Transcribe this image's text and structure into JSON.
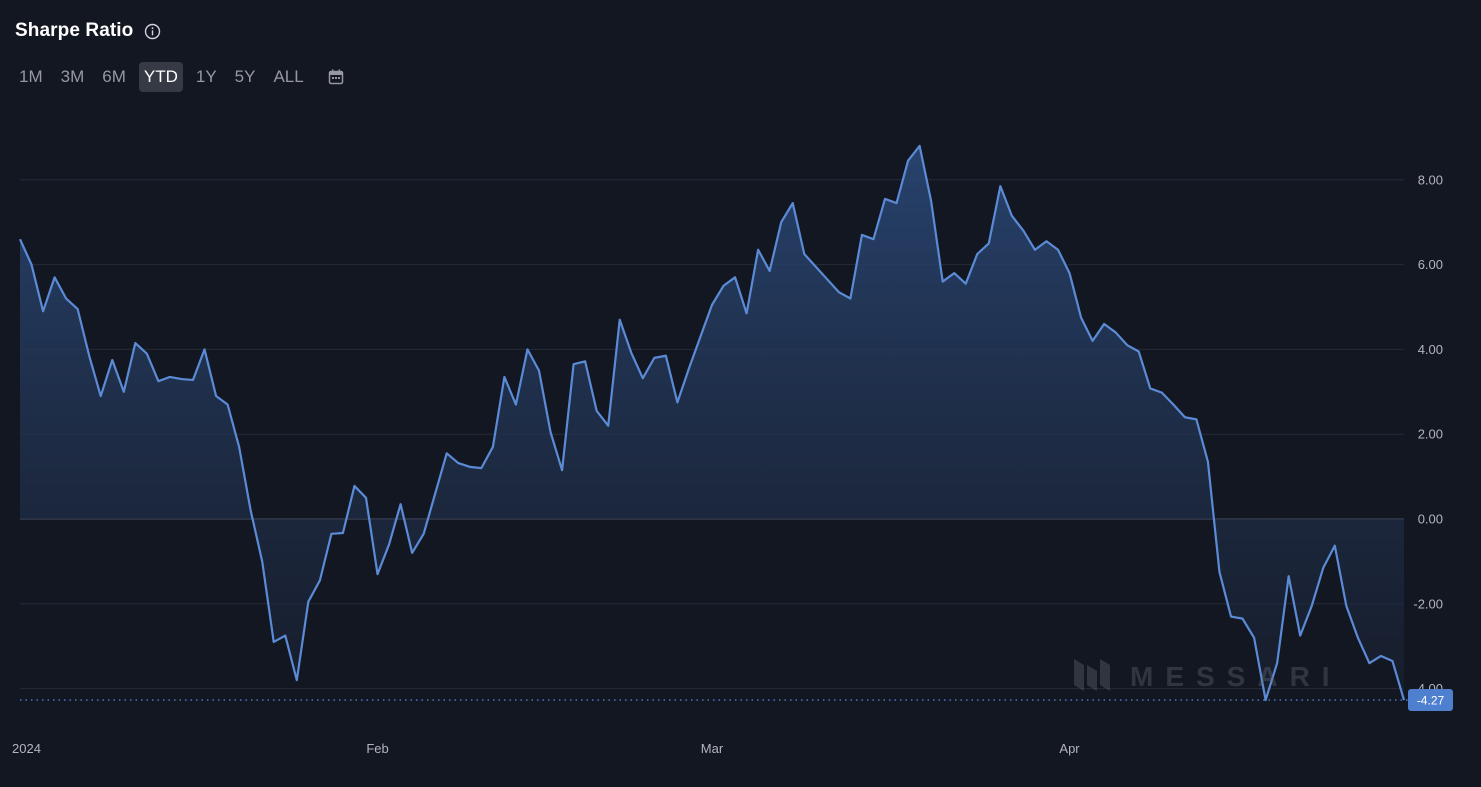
{
  "header": {
    "title": "Sharpe Ratio",
    "info_icon": "info-icon"
  },
  "range_selector": {
    "options": [
      "1M",
      "3M",
      "6M",
      "YTD",
      "1Y",
      "5Y",
      "ALL"
    ],
    "active": "YTD",
    "calendar_icon": "calendar-icon"
  },
  "watermark": {
    "text": "MESSARI",
    "logo_icon": "messari-logo-icon"
  },
  "colors": {
    "background": "#131722",
    "line": "#5b8bd6",
    "grid": "#262b38",
    "badge": "#4f7fcf"
  },
  "chart_data": {
    "type": "area",
    "title": "Sharpe Ratio",
    "xlabel": "",
    "ylabel": "",
    "ylim": [
      -4.27,
      8.8
    ],
    "y_ticks": [
      8,
      6,
      4,
      2,
      0,
      -2,
      -4
    ],
    "y_tick_labels": [
      "8.00",
      "6.00",
      "4.00",
      "2.00",
      "0.00",
      "-2.00",
      "-4.00"
    ],
    "x_tick_labels": [
      "2024",
      "Feb",
      "Mar",
      "Apr"
    ],
    "x_tick_indices": [
      0,
      31,
      60,
      91
    ],
    "last_value_label": "-4.27",
    "grid": true,
    "series": [
      {
        "values": [
          6.6,
          6.0,
          4.9,
          5.7,
          5.2,
          4.95,
          3.85,
          2.9,
          3.75,
          3.0,
          4.15,
          3.9,
          3.25,
          3.35,
          3.3,
          3.28,
          4.0,
          2.9,
          2.7,
          1.7,
          0.2,
          -1.0,
          -2.9,
          -2.75,
          -3.8,
          -1.95,
          -1.45,
          -0.35,
          -0.33,
          0.78,
          0.5,
          -1.3,
          -0.6,
          0.35,
          -0.8,
          -0.35,
          0.6,
          1.55,
          1.32,
          1.23,
          1.2,
          1.7,
          3.35,
          2.7,
          4.0,
          3.5,
          2.05,
          1.15,
          3.65,
          3.72,
          2.55,
          2.2,
          4.7,
          3.92,
          3.32,
          3.8,
          3.85,
          2.75,
          3.55,
          4.3,
          5.05,
          5.5,
          5.7,
          4.85,
          6.35,
          5.85,
          7.0,
          7.45,
          6.25,
          5.95,
          5.65,
          5.35,
          5.2,
          6.7,
          6.6,
          7.55,
          7.45,
          8.45,
          8.8,
          7.5,
          5.6,
          5.8,
          5.55,
          6.25,
          6.5,
          7.85,
          7.15,
          6.8,
          6.35,
          6.55,
          6.35,
          5.8,
          4.75,
          4.2,
          4.6,
          4.4,
          4.1,
          3.95,
          3.08,
          2.98,
          2.7,
          2.4,
          2.35,
          1.35,
          -1.25,
          -2.3,
          -2.35,
          -2.8,
          -4.27,
          -3.4,
          -1.35,
          -2.75,
          -2.05,
          -1.15,
          -0.63,
          -2.05,
          -2.8,
          -3.4,
          -3.23,
          -3.35,
          -4.27
        ]
      }
    ]
  }
}
